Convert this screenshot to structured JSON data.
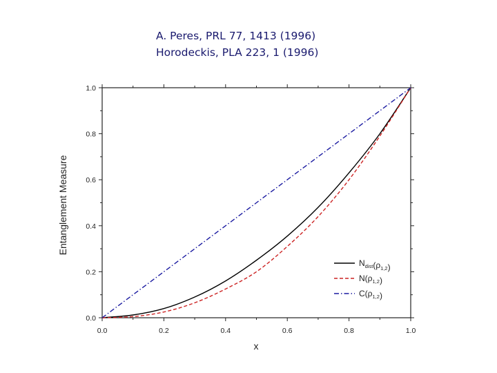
{
  "references": [
    "A.  Peres, PRL 77, 1413 (1996)",
    "Horodeckis, PLA 223, 1 (1996)"
  ],
  "chart_data": {
    "type": "line",
    "title": "",
    "xlabel": "x",
    "ylabel": "Entanglement Measure",
    "xlim": [
      0.0,
      1.0
    ],
    "ylim": [
      0.0,
      1.0
    ],
    "xticks": [
      "0.0",
      "0.2",
      "0.4",
      "0.6",
      "0.8",
      "1.0"
    ],
    "yticks": [
      "0.0",
      "0.2",
      "0.4",
      "0.6",
      "0.8",
      "1.0"
    ],
    "x": [
      0.0,
      0.1,
      0.2,
      0.3,
      0.4,
      0.5,
      0.6,
      0.7,
      0.8,
      0.9,
      1.0
    ],
    "series": [
      {
        "name": "N_dist(ρ1,2)",
        "name_main": "N",
        "name_sub": "dist",
        "name_arg": "(ρ",
        "name_arg_sub": "1,2",
        "name_close": ")",
        "color": "#000000",
        "style": "solid",
        "values": [
          0.0,
          0.012,
          0.04,
          0.09,
          0.16,
          0.25,
          0.355,
          0.48,
          0.63,
          0.8,
          1.0
        ]
      },
      {
        "name": "N(ρ1,2)",
        "name_main": "N",
        "name_sub": "",
        "name_arg": "(ρ",
        "name_arg_sub": "1,2",
        "name_close": ")",
        "color": "#cc2222",
        "style": "dashed",
        "values": [
          0.0,
          0.005,
          0.025,
          0.065,
          0.125,
          0.2,
          0.31,
          0.44,
          0.6,
          0.79,
          1.0
        ]
      },
      {
        "name": "C(ρ1,2)",
        "name_main": "C",
        "name_sub": "",
        "name_arg": "(ρ",
        "name_arg_sub": "1,2",
        "name_close": ")",
        "color": "#1a1aa0",
        "style": "dashdot",
        "values": [
          0.0,
          0.1,
          0.2,
          0.3,
          0.4,
          0.5,
          0.6,
          0.7,
          0.8,
          0.9,
          1.0
        ]
      }
    ],
    "grid": false,
    "legend_position": "bottom-right"
  }
}
